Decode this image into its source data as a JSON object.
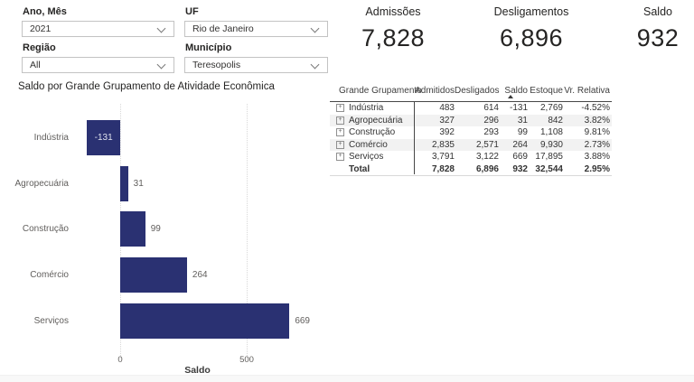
{
  "filters": [
    {
      "label": "Ano, Mês",
      "value": "2021"
    },
    {
      "label": "UF",
      "value": "Rio de Janeiro"
    },
    {
      "label": "Região",
      "value": "All"
    },
    {
      "label": "Município",
      "value": "Teresopolis"
    }
  ],
  "kpis": [
    {
      "label": "Admissões",
      "value": "7,828"
    },
    {
      "label": "Desligamentos",
      "value": "6,896"
    },
    {
      "label": "Saldo",
      "value": "932"
    }
  ],
  "chart_data": {
    "type": "bar",
    "orientation": "horizontal",
    "title": "Saldo por Grande Grupamento de Atividade Econômica",
    "categories": [
      "Indústria",
      "Agropecuária",
      "Construção",
      "Comércio",
      "Serviços"
    ],
    "values": [
      -131,
      31,
      99,
      264,
      669
    ],
    "xlabel": "Saldo",
    "xticks": [
      0,
      500
    ],
    "xlim": [
      -200,
      830
    ],
    "grid": true,
    "legend": false,
    "bar_color": "#2a3172"
  },
  "table": {
    "columns": [
      "Grande Grupamento",
      "Admitidos",
      "Desligados",
      "Saldo",
      "Estoque",
      "Vr. Relativa"
    ],
    "sort": {
      "column": "Saldo",
      "direction": "asc"
    },
    "rows": [
      [
        "Indústria",
        "483",
        "614",
        "-131",
        "2,769",
        "-4.52%"
      ],
      [
        "Agropecuária",
        "327",
        "296",
        "31",
        "842",
        "3.82%"
      ],
      [
        "Construção",
        "392",
        "293",
        "99",
        "1,108",
        "9.81%"
      ],
      [
        "Comércio",
        "2,835",
        "2,571",
        "264",
        "9,930",
        "2.73%"
      ],
      [
        "Serviços",
        "3,791",
        "3,122",
        "669",
        "17,895",
        "3.88%"
      ]
    ],
    "total": [
      "Total",
      "7,828",
      "6,896",
      "932",
      "32,544",
      "2.95%"
    ]
  },
  "colors": {
    "bar": "#2a3172",
    "text_dark": "#252423",
    "text_gray": "#605e5c",
    "row_shade": "#f2f2f2"
  }
}
